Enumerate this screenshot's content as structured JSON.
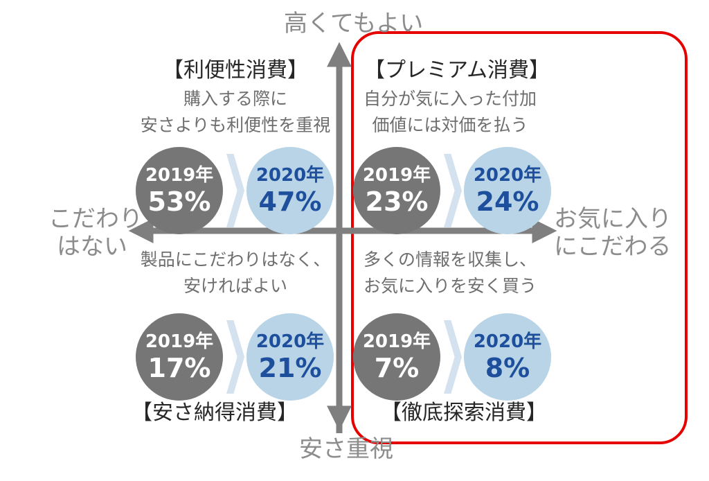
{
  "axes": {
    "top": "高くてもよい",
    "bottom": "安さ重視",
    "left": [
      "こだわり",
      "はない"
    ],
    "right": [
      "お気に入り",
      "にこだわる"
    ]
  },
  "quadrants": {
    "top_left": {
      "title": "【利便性消費】",
      "desc": [
        "購入する際に",
        "安さよりも利便性を重視"
      ],
      "year_a": "2019年",
      "pct_a": "53%",
      "year_b": "2020年",
      "pct_b": "47%"
    },
    "top_right": {
      "title": "【プレミアム消費】",
      "desc": [
        "自分が気に入った付加",
        "価値には対価を払う"
      ],
      "year_a": "2019年",
      "pct_a": "23%",
      "year_b": "2020年",
      "pct_b": "24%"
    },
    "bottom_left": {
      "title": "【安さ納得消費】",
      "desc": [
        "製品にこだわりはなく、",
        "安ければよい"
      ],
      "year_a": "2019年",
      "pct_a": "17%",
      "year_b": "2020年",
      "pct_b": "21%"
    },
    "bottom_right": {
      "title": "【徹底探索消費】",
      "desc": [
        "多くの情報を収集し、",
        "お気に入りを安く買う"
      ],
      "year_a": "2019年",
      "pct_a": "7%",
      "year_b": "2020年",
      "pct_b": "8%"
    }
  },
  "colors": {
    "highlight": "#e60000",
    "circle_2019": "#767676",
    "circle_2020": "#b8d4e6",
    "text_2020": "#1d4f9c",
    "axis": "#7f7f7f"
  }
}
